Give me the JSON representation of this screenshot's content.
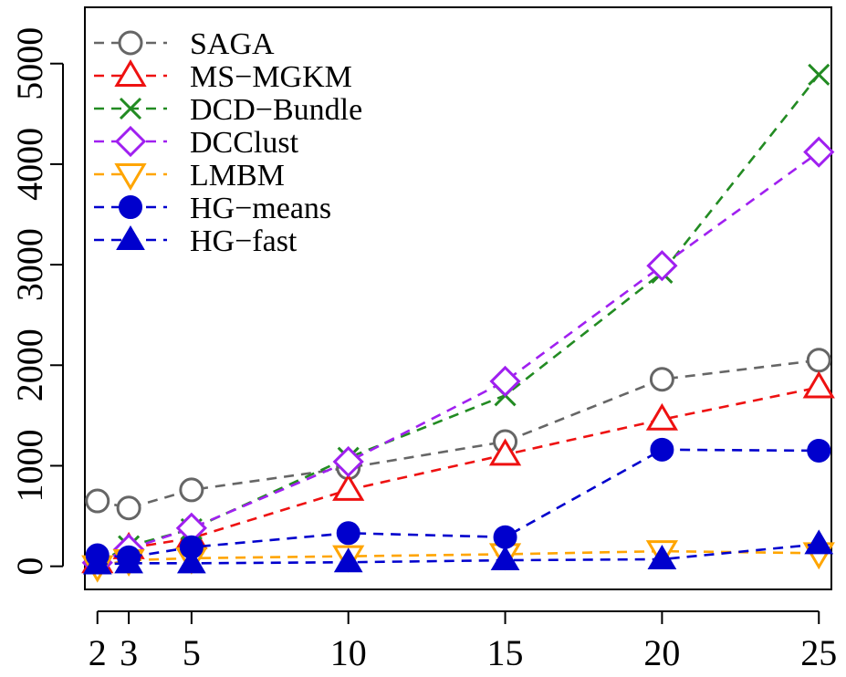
{
  "chart_data": {
    "type": "line",
    "title": "",
    "xlabel": "",
    "ylabel": "",
    "x": [
      2,
      3,
      5,
      10,
      15,
      20,
      25
    ],
    "x_tick_labels": [
      "2",
      "3",
      "5",
      "10",
      "15",
      "20",
      "25"
    ],
    "y_ticks": [
      0,
      1000,
      2000,
      3000,
      4000,
      5000
    ],
    "y_tick_labels": [
      "0",
      "1000",
      "2000",
      "3000",
      "4000",
      "5000"
    ],
    "xlim": [
      1.6,
      25.4
    ],
    "ylim": [
      -230,
      5560
    ],
    "grid": false,
    "legend_position": "top-left",
    "series": [
      {
        "name": "SAGA",
        "color": "#666666",
        "marker": "circle-open",
        "values": [
          650,
          580,
          760,
          980,
          1240,
          1860,
          2050
        ]
      },
      {
        "name": "MS−MGKM",
        "color": "#ee1111",
        "marker": "triangle-up-open",
        "values": [
          40,
          180,
          280,
          760,
          1110,
          1460,
          1780
        ]
      },
      {
        "name": "DCD−Bundle",
        "color": "#228b22",
        "marker": "cross",
        "values": [
          30,
          200,
          370,
          1080,
          1700,
          2920,
          4890
        ]
      },
      {
        "name": "DCClust",
        "color": "#a020f0",
        "marker": "diamond-open",
        "values": [
          35,
          170,
          380,
          1040,
          1840,
          2990,
          4120
        ]
      },
      {
        "name": "LMBM",
        "color": "#ffa500",
        "marker": "triangle-down-open",
        "values": [
          0,
          60,
          80,
          100,
          120,
          150,
          130
        ]
      },
      {
        "name": "HG−means",
        "color": "#0000cd",
        "marker": "circle-filled",
        "values": [
          110,
          90,
          190,
          330,
          290,
          1160,
          1150
        ]
      },
      {
        "name": "HG−fast",
        "color": "#0000cd",
        "marker": "triangle-up-filled",
        "values": [
          20,
          30,
          30,
          40,
          60,
          70,
          220
        ]
      }
    ]
  }
}
